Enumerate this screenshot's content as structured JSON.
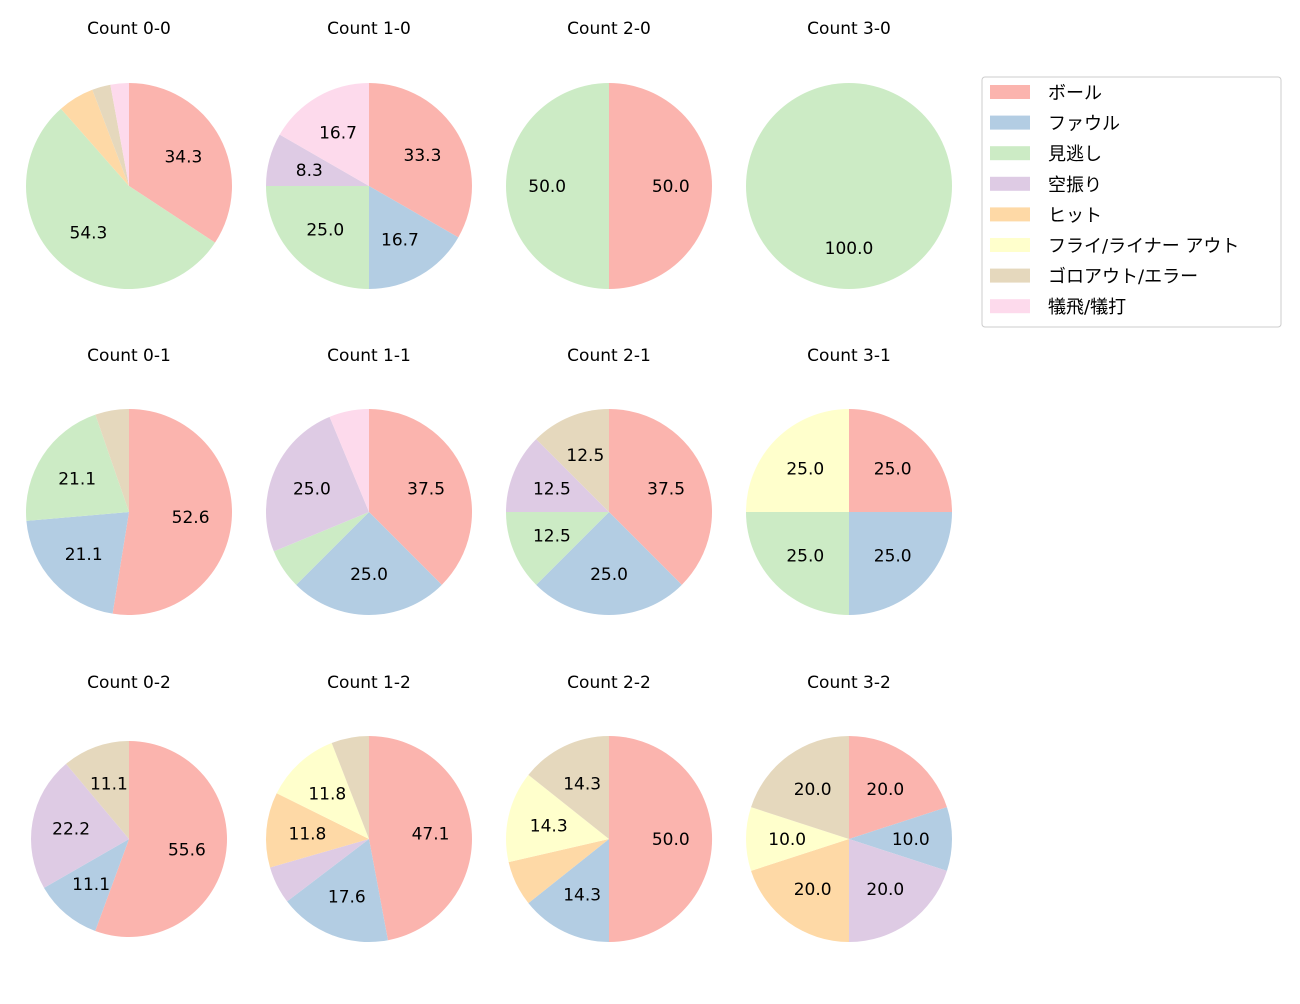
{
  "chart_data": {
    "type": "pie",
    "categories": [
      "ボール",
      "ファウル",
      "見逃し",
      "空振り",
      "ヒット",
      "フライ/ライナー アウト",
      "ゴロアウト/エラー",
      "犠飛/犠打"
    ],
    "colors": [
      "#fbb4ae",
      "#b3cde3",
      "#ccebc5",
      "#decbe4",
      "#fed9a6",
      "#ffffcc",
      "#e5d8bd",
      "#fddaec"
    ],
    "start_angle": 90,
    "direction": "clockwise",
    "label_format": "%.1f",
    "legend": {
      "placement": "upper-right-outside",
      "entries": [
        "ボール",
        "ファウル",
        "見逃し",
        "空振り",
        "ヒット",
        "フライ/ライナー アウト",
        "ゴロアウト/エラー",
        "犠飛/犠打"
      ]
    },
    "charts": [
      {
        "title": "Count 0-0",
        "values": [
          34.3,
          0,
          54.3,
          0,
          5.7,
          0,
          2.9,
          2.9
        ]
      },
      {
        "title": "Count 1-0",
        "values": [
          33.3,
          16.7,
          25.0,
          8.3,
          0,
          0,
          0,
          16.7
        ]
      },
      {
        "title": "Count 2-0",
        "values": [
          50.0,
          0,
          50.0,
          0,
          0,
          0,
          0,
          0
        ]
      },
      {
        "title": "Count 3-0",
        "values": [
          0,
          0,
          100.0,
          0,
          0,
          0,
          0,
          0
        ]
      },
      {
        "title": "Count 0-1",
        "values": [
          52.6,
          21.1,
          21.1,
          0,
          0,
          0,
          5.3,
          0
        ]
      },
      {
        "title": "Count 1-1",
        "values": [
          37.5,
          25.0,
          6.25,
          25.0,
          0,
          0,
          0,
          6.25
        ]
      },
      {
        "title": "Count 2-1",
        "values": [
          37.5,
          25.0,
          12.5,
          12.5,
          0,
          0,
          12.5,
          0
        ]
      },
      {
        "title": "Count 3-1",
        "values": [
          25.0,
          25.0,
          25.0,
          0,
          0,
          25.0,
          0,
          0
        ]
      },
      {
        "title": "Count 0-2",
        "values": [
          55.6,
          11.1,
          0,
          22.2,
          0,
          0,
          11.1,
          0
        ]
      },
      {
        "title": "Count 1-2",
        "values": [
          47.1,
          17.6,
          0,
          5.9,
          11.8,
          11.8,
          5.9,
          0
        ]
      },
      {
        "title": "Count 2-2",
        "values": [
          50.0,
          14.3,
          0,
          0,
          7.1,
          14.3,
          14.3,
          0
        ]
      },
      {
        "title": "Count 3-2",
        "values": [
          20.0,
          10.0,
          0,
          20.0,
          20.0,
          10.0,
          20.0,
          0
        ]
      }
    ]
  }
}
